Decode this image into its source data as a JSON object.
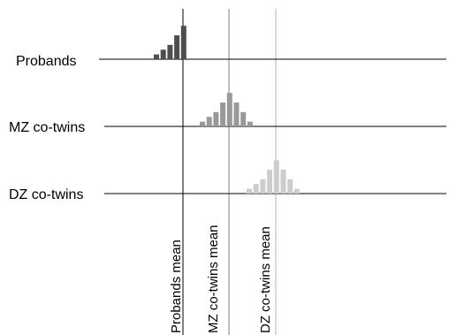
{
  "rows": [
    {
      "label": "Probands",
      "color": "#4d4d4d",
      "bar_heights": [
        1,
        2,
        3,
        5,
        7
      ]
    },
    {
      "label": "MZ co-twins",
      "color": "#999999",
      "bar_heights": [
        1,
        2,
        3,
        5,
        7,
        5,
        3,
        1
      ]
    },
    {
      "label": "DZ co-twins",
      "color": "#cccccc",
      "bar_heights": [
        1,
        2,
        3,
        5,
        7,
        5,
        3,
        1
      ]
    }
  ],
  "means": [
    {
      "label": "Probands mean",
      "color": "#000000"
    },
    {
      "label": "MZ co-twins mean",
      "color": "#808080"
    },
    {
      "label": "DZ co-twins mean",
      "color": "#b3b3b3"
    }
  ]
}
